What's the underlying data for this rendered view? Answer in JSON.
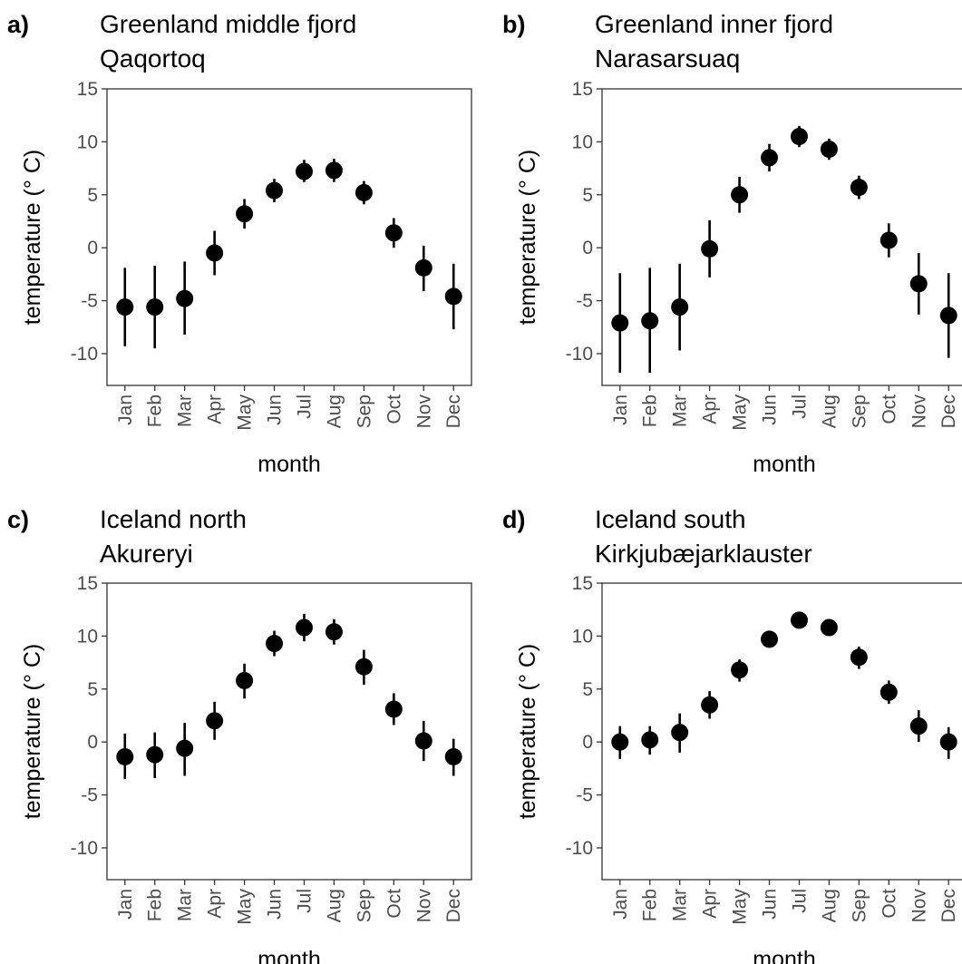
{
  "chart_data": [
    {
      "type": "scatter",
      "panel_label": "a)",
      "title": "Greenland middle fjord",
      "subtitle": "Qaqortoq",
      "xlabel": "month",
      "ylabel": "temperature (° C)",
      "ylim": [
        -13,
        15
      ],
      "yticks": [
        "15",
        "10",
        "5",
        "0",
        "-5",
        "-10"
      ],
      "categories": [
        "Jan",
        "Feb",
        "Mar",
        "Apr",
        "May",
        "Jun",
        "Jul",
        "Aug",
        "Sep",
        "Oct",
        "Nov",
        "Dec"
      ],
      "values": [
        -5.6,
        -5.6,
        -4.8,
        -0.5,
        3.2,
        5.4,
        7.2,
        7.3,
        5.2,
        1.4,
        -1.9,
        -4.6
      ],
      "lower": [
        -9.3,
        -9.5,
        -8.2,
        -2.6,
        1.8,
        4.3,
        6.2,
        6.2,
        4.1,
        0.0,
        -4.1,
        -7.7
      ],
      "upper": [
        -1.9,
        -1.7,
        -1.3,
        1.6,
        4.6,
        6.5,
        8.3,
        8.4,
        6.3,
        2.8,
        0.2,
        -1.5
      ],
      "grid": false,
      "legend": "none"
    },
    {
      "type": "scatter",
      "panel_label": "b)",
      "title": "Greenland inner fjord",
      "subtitle": "Narasarsuaq",
      "xlabel": "month",
      "ylabel": "temperature (° C)",
      "ylim": [
        -13,
        15
      ],
      "yticks": [
        "15",
        "10",
        "5",
        "0",
        "-5",
        "-10"
      ],
      "categories": [
        "Jan",
        "Feb",
        "Mar",
        "Apr",
        "May",
        "Jun",
        "Jul",
        "Aug",
        "Sep",
        "Oct",
        "Nov",
        "Dec"
      ],
      "values": [
        -7.1,
        -6.9,
        -5.6,
        -0.1,
        5.0,
        8.5,
        10.5,
        9.3,
        5.7,
        0.7,
        -3.4,
        -6.4
      ],
      "lower": [
        -11.8,
        -11.8,
        -9.7,
        -2.8,
        3.3,
        7.2,
        9.5,
        8.3,
        4.6,
        -0.9,
        -6.3,
        -10.4
      ],
      "upper": [
        -2.4,
        -1.9,
        -1.5,
        2.6,
        6.7,
        9.8,
        11.5,
        10.3,
        6.8,
        2.3,
        -0.5,
        -2.4
      ],
      "grid": false,
      "legend": "none"
    },
    {
      "type": "scatter",
      "panel_label": "c)",
      "title": "Iceland north",
      "subtitle": "Akureryi",
      "xlabel": "month",
      "ylabel": "temperature (° C)",
      "ylim": [
        -13,
        15
      ],
      "yticks": [
        "15",
        "10",
        "5",
        "0",
        "-5",
        "-10"
      ],
      "categories": [
        "Jan",
        "Feb",
        "Mar",
        "Apr",
        "May",
        "Jun",
        "Jul",
        "Aug",
        "Sep",
        "Oct",
        "Nov",
        "Dec"
      ],
      "values": [
        -1.4,
        -1.2,
        -0.6,
        2.0,
        5.8,
        9.3,
        10.8,
        10.4,
        7.1,
        3.1,
        0.1,
        -1.4
      ],
      "lower": [
        -3.5,
        -3.4,
        -3.2,
        0.2,
        4.1,
        8.1,
        9.5,
        9.2,
        5.4,
        1.6,
        -1.8,
        -3.2
      ],
      "upper": [
        0.8,
        0.9,
        1.8,
        3.8,
        7.4,
        10.5,
        12.1,
        11.6,
        8.7,
        4.6,
        2.0,
        0.3
      ],
      "grid": false,
      "legend": "none"
    },
    {
      "type": "scatter",
      "panel_label": "d)",
      "title": "Iceland south",
      "subtitle": "Kirkjubæjarklauster",
      "xlabel": "month",
      "ylabel": "temperature (° C)",
      "ylim": [
        -13,
        15
      ],
      "yticks": [
        "15",
        "10",
        "5",
        "0",
        "-5",
        "-10"
      ],
      "categories": [
        "Jan",
        "Feb",
        "Mar",
        "Apr",
        "May",
        "Jun",
        "Jul",
        "Aug",
        "Sep",
        "Oct",
        "Nov",
        "Dec"
      ],
      "values": [
        0.0,
        0.2,
        0.9,
        3.5,
        6.8,
        9.7,
        11.5,
        10.8,
        8.0,
        4.7,
        1.5,
        0.0
      ],
      "lower": [
        -1.6,
        -1.2,
        -1.0,
        2.2,
        5.7,
        8.9,
        10.7,
        10.0,
        6.9,
        3.6,
        0.0,
        -1.6
      ],
      "upper": [
        1.5,
        1.5,
        2.7,
        4.8,
        7.8,
        10.4,
        12.3,
        11.6,
        9.0,
        5.8,
        3.0,
        1.4
      ],
      "grid": false,
      "legend": "none"
    }
  ]
}
